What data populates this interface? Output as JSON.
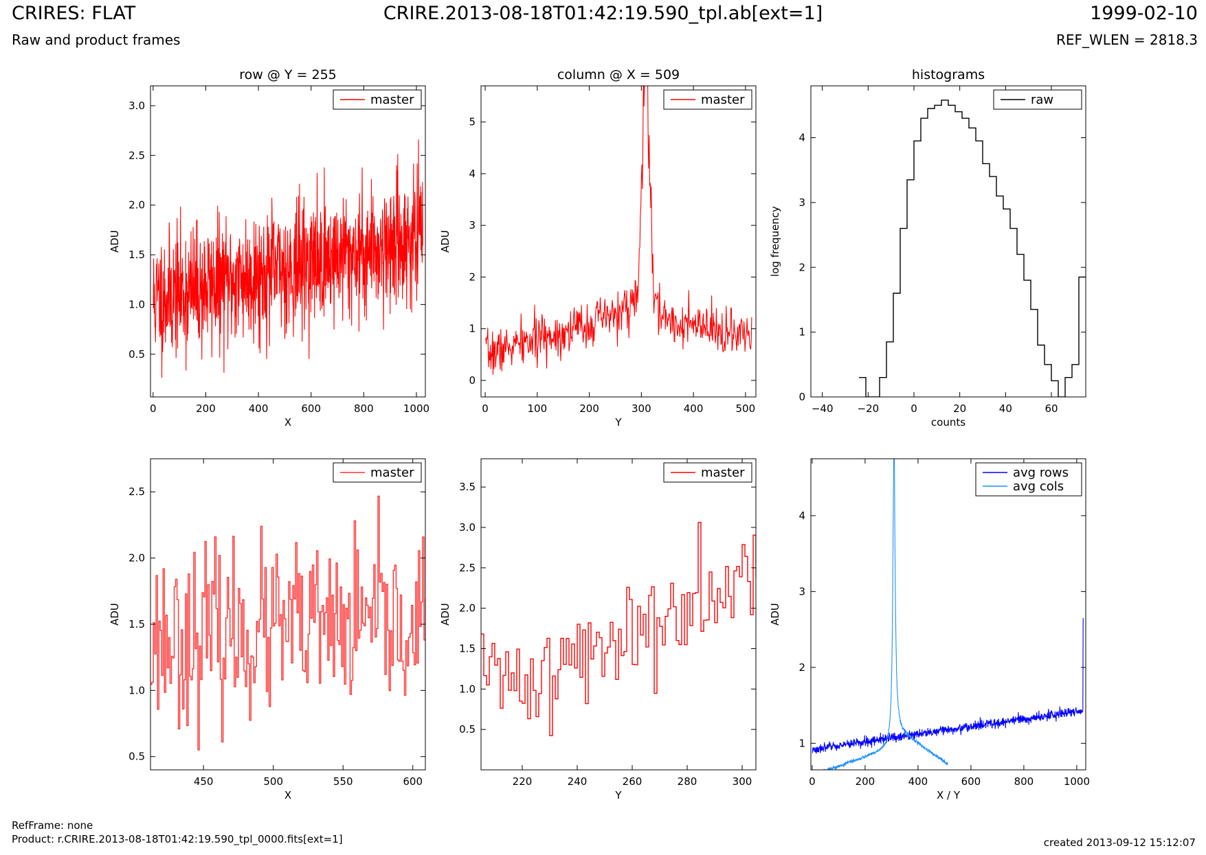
{
  "header": {
    "title_left": "CRIRES: FLAT",
    "title_center": "CRIRE.2013-08-18T01:42:19.590_tpl.ab[ext=1]",
    "title_right": "1999-02-10",
    "subtitle_left": "Raw and product frames",
    "subtitle_right": "REF_WLEN = 2818.3"
  },
  "footer": {
    "ref_frame": "RefFrame: none",
    "product": "Product: r.CRIRE.2013-08-18T01:42:19.590_tpl_0000.fits[ext=1]",
    "created": "created 2013-09-12 15:12:07"
  },
  "colors": {
    "master": "#ff0000",
    "master_zoom": "#ff3030",
    "raw": "#000000",
    "avg_rows": "#0000ff",
    "avg_cols": "#1e90ff"
  },
  "chart_data": [
    {
      "id": "row",
      "type": "line",
      "title": "row @ Y = 255",
      "xlabel": "X",
      "ylabel": "ADU",
      "xlim": [
        -10,
        1034
      ],
      "ylim": [
        0.07,
        3.2
      ],
      "xticks": [
        0,
        200,
        400,
        600,
        800,
        1000
      ],
      "yticks": [
        0.5,
        1.0,
        1.5,
        2.0,
        2.5,
        3.0
      ],
      "ytick_format": 1,
      "legend": "top-right",
      "series": [
        {
          "name": "master",
          "color": "#ff0000",
          "step": false,
          "noise": {
            "n": 1024,
            "x0": 1,
            "dx": 1,
            "base": [
              1.05,
              1.68
            ],
            "amp": 0.32,
            "seed": 11
          }
        }
      ]
    },
    {
      "id": "column",
      "type": "line",
      "title": "column @ X = 509",
      "xlabel": "Y",
      "ylabel": "ADU",
      "xlim": [
        -8,
        520
      ],
      "ylim": [
        -0.32,
        5.7
      ],
      "xticks": [
        0,
        100,
        200,
        300,
        400,
        500
      ],
      "yticks": [
        0,
        1,
        2,
        3,
        4,
        5
      ],
      "ytick_format": 0,
      "legend": "top-right",
      "series": [
        {
          "name": "master",
          "color": "#ff0000",
          "step": false,
          "peak": {
            "n": 512,
            "x0": 1,
            "dx": 1,
            "center": 309,
            "height": 4.6,
            "width": 6,
            "base_left": [
              0.5,
              1.4
            ],
            "base_right": [
              1.2,
              0.8
            ],
            "amp": 0.22,
            "seed": 7
          }
        }
      ]
    },
    {
      "id": "hist",
      "type": "step",
      "title": "histograms",
      "xlabel": "counts",
      "ylabel": "log frequency",
      "xlim": [
        -45,
        75
      ],
      "ylim": [
        0,
        4.8
      ],
      "xticks": [
        -40,
        -20,
        0,
        20,
        40,
        60
      ],
      "yticks": [
        0,
        1,
        2,
        3,
        4
      ],
      "ytick_format": 0,
      "legend": "top-right",
      "series": [
        {
          "name": "raw",
          "color": "#000000",
          "step": true,
          "x": [
            -24,
            -21,
            -21,
            -18,
            -15,
            -12,
            -9,
            -6,
            -3,
            0,
            3,
            6,
            9,
            12,
            15,
            18,
            21,
            24,
            27,
            30,
            33,
            36,
            39,
            42,
            45,
            48,
            51,
            54,
            57,
            60,
            63,
            66,
            69,
            72,
            75
          ],
          "y": [
            0.3,
            0.3,
            0,
            0,
            0.3,
            0.85,
            1.6,
            2.6,
            3.35,
            3.95,
            4.3,
            4.45,
            4.5,
            4.58,
            4.5,
            4.4,
            4.3,
            4.15,
            3.95,
            3.6,
            3.4,
            3.1,
            2.9,
            2.6,
            2.2,
            1.8,
            1.35,
            0.8,
            0.5,
            0.25,
            0,
            0.3,
            0.5,
            1.85,
            1.85
          ]
        }
      ]
    },
    {
      "id": "row-zoom",
      "type": "line",
      "title": "",
      "xlabel": "X",
      "ylabel": "ADU",
      "xlim": [
        412,
        609
      ],
      "ylim": [
        0.4,
        2.75
      ],
      "xticks": [
        450,
        500,
        550,
        600
      ],
      "yticks": [
        0.5,
        1.0,
        1.5,
        2.0,
        2.5
      ],
      "ytick_format": 1,
      "legend": "top-right",
      "series": [
        {
          "name": "master",
          "color": "#ff3030",
          "step": true,
          "noise": {
            "n": 198,
            "x0": 412,
            "dx": 1,
            "base": [
              1.4,
              1.5
            ],
            "amp": 0.32,
            "seed": 23
          }
        }
      ]
    },
    {
      "id": "column-zoom",
      "type": "line",
      "title": "",
      "xlabel": "Y",
      "ylabel": "ADU",
      "xlim": [
        205,
        305
      ],
      "ylim": [
        0.0,
        3.85
      ],
      "xticks": [
        220,
        240,
        260,
        280,
        300
      ],
      "yticks": [
        0.5,
        1.0,
        1.5,
        2.0,
        2.5,
        3.0,
        3.5
      ],
      "ytick_format": 1,
      "legend": "top-right",
      "series": [
        {
          "name": "master",
          "color": "#ff0000",
          "step": true,
          "noise": {
            "n": 101,
            "x0": 205,
            "dx": 1,
            "base": [
              1.1,
              2.8
            ],
            "amp": 0.35,
            "seed": 41,
            "curve": 1.8
          }
        }
      ]
    },
    {
      "id": "avg",
      "type": "line",
      "title": "",
      "xlabel": "X / Y",
      "ylabel": "ADU",
      "xlim": [
        -5,
        1034
      ],
      "ylim": [
        0.65,
        4.75
      ],
      "xticks": [
        0,
        200,
        400,
        600,
        800,
        1000
      ],
      "yticks": [
        1,
        2,
        3,
        4
      ],
      "ytick_format": 0,
      "legend": "top-right",
      "series": [
        {
          "name": "avg rows",
          "color": "#0000ff",
          "step": false,
          "noise": {
            "n": 1024,
            "x0": 1,
            "dx": 1,
            "base": [
              0.92,
              1.43
            ],
            "amp": 0.03,
            "seed": 3,
            "spike": [
              1023,
              2.65
            ]
          }
        },
        {
          "name": "avg cols",
          "color": "#1e90ff",
          "step": false,
          "peak": {
            "n": 512,
            "x0": 1,
            "dx": 1,
            "center": 309,
            "height": 3.9,
            "width": 5,
            "base_left": [
              0.58,
              0.95
            ],
            "base_right": [
              1.2,
              0.73
            ],
            "amp": 0.012,
            "seed": 5,
            "lorentz": 1
          }
        }
      ]
    }
  ]
}
